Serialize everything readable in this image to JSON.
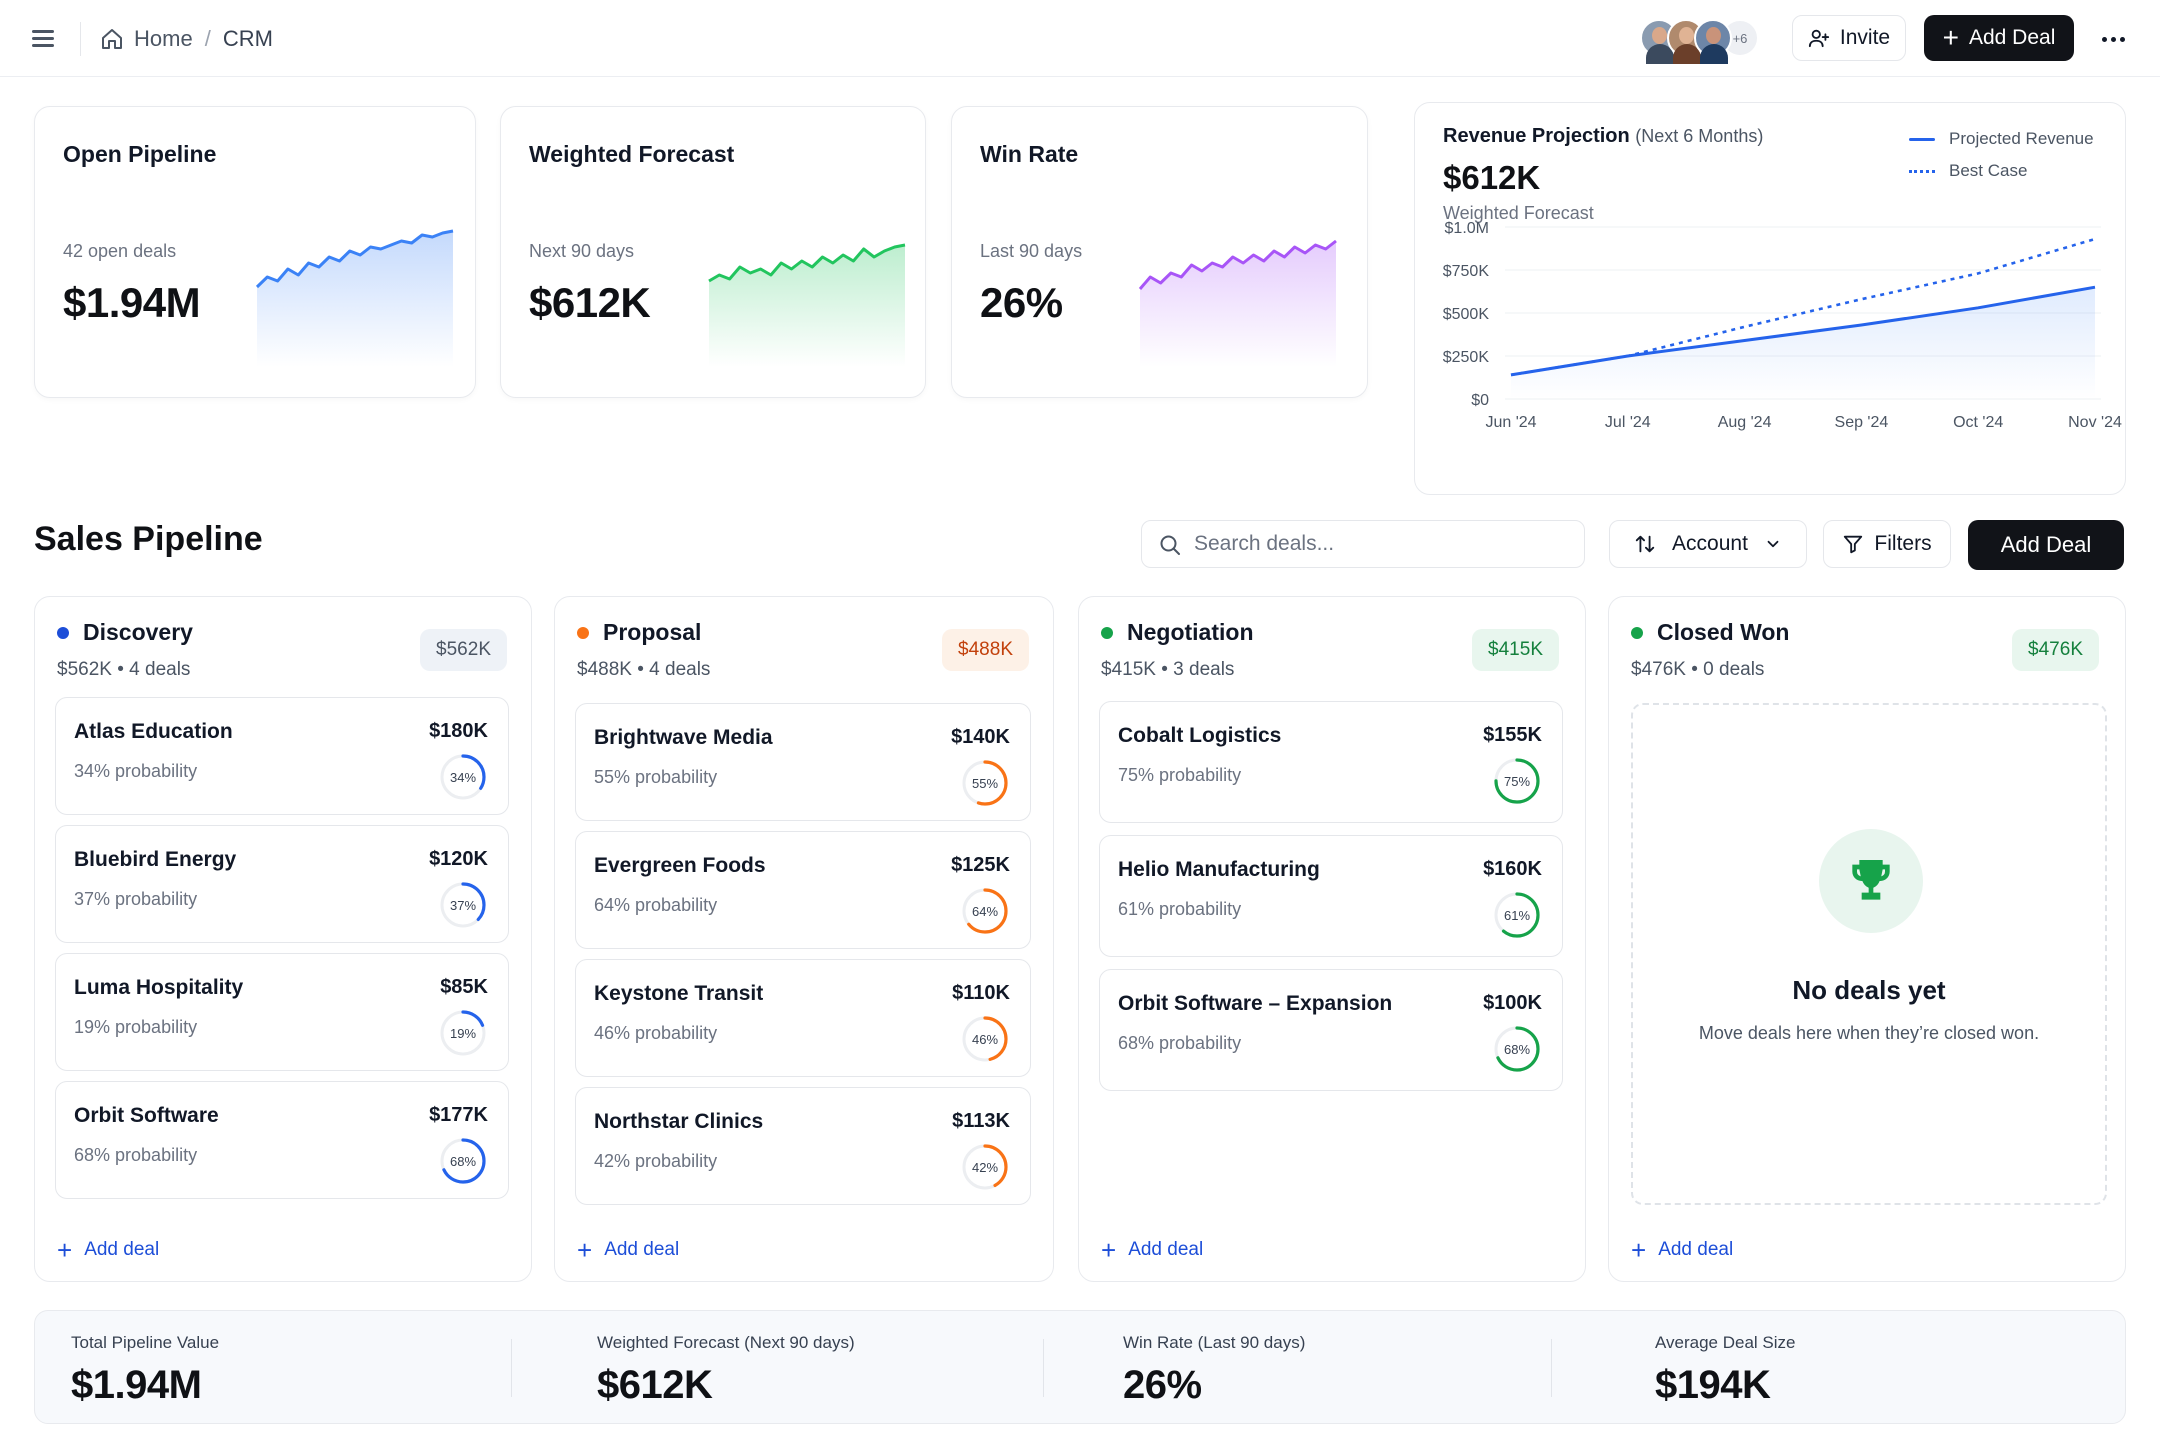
{
  "breadcrumb": {
    "home": "Home",
    "separator": "/",
    "current": "CRM"
  },
  "header": {
    "avatars_more": "+6",
    "invite_label": "Invite",
    "add_deal_label": "Add Deal"
  },
  "kpis": [
    {
      "title": "Open Pipeline",
      "subtitle": "42 open deals",
      "value": "$1.94M",
      "color": "#3b82f6"
    },
    {
      "title": "Weighted Forecast",
      "subtitle": "Next 90 days",
      "value": "$612K",
      "color": "#22c55e"
    },
    {
      "title": "Win Rate",
      "subtitle": "Last 90 days",
      "value": "26%",
      "color": "#a855f7"
    }
  ],
  "revenue": {
    "title": "Revenue Projection",
    "title_note": "(Next 6 Months)",
    "value": "$612K",
    "subtitle": "Weighted Forecast",
    "legend": {
      "projected": "Projected Revenue",
      "best": "Best Case"
    }
  },
  "chart_data": {
    "type": "line",
    "x": [
      "Jun '24",
      "Jul '24",
      "Aug '24",
      "Sep '24",
      "Oct '24",
      "Nov '24"
    ],
    "y_ticks": [
      "$1.0M",
      "$750K",
      "$500K",
      "$250K",
      "$0"
    ],
    "ylim": [
      0,
      1000
    ],
    "grid": true,
    "legend_position": "top-right",
    "series": [
      {
        "name": "Projected Revenue",
        "style": "solid",
        "color": "#2563eb",
        "values": [
          140,
          250,
          340,
          430,
          530,
          650
        ]
      },
      {
        "name": "Best Case",
        "style": "dotted",
        "color": "#2563eb",
        "values": [
          140,
          250,
          420,
          580,
          730,
          930
        ]
      }
    ]
  },
  "pipeline": {
    "title": "Sales Pipeline",
    "search_placeholder": "Search deals...",
    "sort_label": "Account",
    "filters_label": "Filters",
    "add_deal_label": "Add Deal"
  },
  "columns": [
    {
      "name": "Discovery",
      "meta": "$562K • 4 deals",
      "badge": "$562K",
      "dot_color": "#1d4ed8",
      "badge_bg": "#eef2f7",
      "badge_color": "#4b5563",
      "ring_color": "#2563eb",
      "add_label": "Add deal",
      "deals": [
        {
          "name": "Atlas Education",
          "amount": "$180K",
          "probability": "34% probability",
          "pct_label": "34%",
          "pct": 34
        },
        {
          "name": "Bluebird Energy",
          "amount": "$120K",
          "probability": "37% probability",
          "pct_label": "37%",
          "pct": 37
        },
        {
          "name": "Luma Hospitality",
          "amount": "$85K",
          "probability": "19% probability",
          "pct_label": "19%",
          "pct": 19
        },
        {
          "name": "Orbit Software",
          "amount": "$177K",
          "probability": "68% probability",
          "pct_label": "68%",
          "pct": 68
        }
      ]
    },
    {
      "name": "Proposal",
      "meta": "$488K • 4 deals",
      "badge": "$488K",
      "dot_color": "#f97316",
      "badge_bg": "#fdf1e7",
      "badge_color": "#c2410c",
      "ring_color": "#f97316",
      "add_label": "Add deal",
      "deals": [
        {
          "name": "Brightwave Media",
          "amount": "$140K",
          "probability": "55% probability",
          "pct_label": "55%",
          "pct": 55
        },
        {
          "name": "Evergreen Foods",
          "amount": "$125K",
          "probability": "64% probability",
          "pct_label": "64%",
          "pct": 64
        },
        {
          "name": "Keystone Transit",
          "amount": "$110K",
          "probability": "46% probability",
          "pct_label": "46%",
          "pct": 46
        },
        {
          "name": "Northstar Clinics",
          "amount": "$113K",
          "probability": "42% probability",
          "pct_label": "42%",
          "pct": 42
        }
      ]
    },
    {
      "name": "Negotiation",
      "meta": "$415K • 3 deals",
      "badge": "$415K",
      "dot_color": "#16a34a",
      "badge_bg": "#e8f6ee",
      "badge_color": "#15803d",
      "ring_color": "#16a34a",
      "add_label": "Add deal",
      "deals": [
        {
          "name": "Cobalt Logistics",
          "amount": "$155K",
          "probability": "75% probability",
          "pct_label": "75%",
          "pct": 75
        },
        {
          "name": "Helio Manufacturing",
          "amount": "$160K",
          "probability": "61% probability",
          "pct_label": "61%",
          "pct": 61
        },
        {
          "name": "Orbit Software – Expansion",
          "amount": "$100K",
          "probability": "68% probability",
          "pct_label": "68%",
          "pct": 68
        }
      ]
    },
    {
      "name": "Closed Won",
      "meta": "$476K • 0 deals",
      "badge": "$476K",
      "dot_color": "#16a34a",
      "badge_bg": "#e8f6ee",
      "badge_color": "#15803d",
      "add_label": "Add deal",
      "empty_title": "No deals yet",
      "empty_subtitle": "Move deals here when they’re closed won."
    }
  ],
  "stats": [
    {
      "label": "Total Pipeline Value",
      "value": "$1.94M"
    },
    {
      "label": "Weighted Forecast (Next 90 days)",
      "value": "$612K"
    },
    {
      "label": "Win Rate (Last 90 days)",
      "value": "26%"
    },
    {
      "label": "Average Deal Size",
      "value": "$194K"
    }
  ]
}
